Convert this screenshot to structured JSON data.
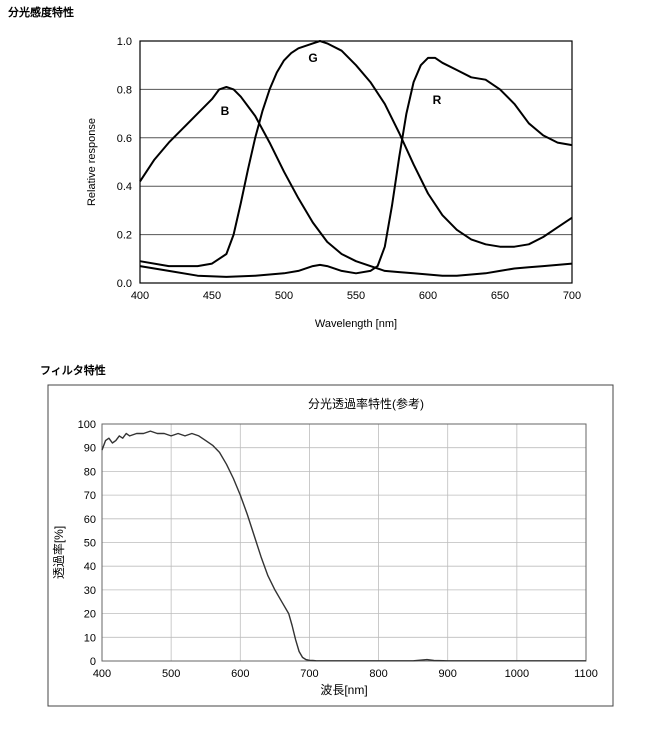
{
  "section1": {
    "title": "分光感度特性"
  },
  "section2": {
    "title": "フィルタ特性"
  },
  "chart_data": [
    {
      "type": "line",
      "title": "",
      "xlabel": "Wavelength [nm]",
      "ylabel": "Relative response",
      "xlim": [
        400,
        700
      ],
      "ylim": [
        0,
        1.0
      ],
      "xticks": [
        "400",
        "450",
        "500",
        "550",
        "600",
        "650",
        "700"
      ],
      "yticks": [
        "0.0",
        "0.2",
        "0.4",
        "0.6",
        "0.8",
        "1.0"
      ],
      "grid": "horizontal",
      "color": "#000000",
      "series": [
        {
          "name": "B",
          "x": [
            400,
            410,
            420,
            430,
            440,
            450,
            455,
            460,
            465,
            470,
            480,
            490,
            500,
            510,
            520,
            530,
            540,
            550,
            560,
            570,
            580,
            590,
            600,
            610,
            620,
            630,
            640,
            650,
            660,
            670,
            680,
            690,
            700
          ],
          "y": [
            0.42,
            0.51,
            0.58,
            0.64,
            0.7,
            0.76,
            0.8,
            0.81,
            0.8,
            0.77,
            0.69,
            0.58,
            0.46,
            0.35,
            0.25,
            0.17,
            0.12,
            0.09,
            0.07,
            0.05,
            0.045,
            0.04,
            0.035,
            0.03,
            0.03,
            0.035,
            0.04,
            0.05,
            0.06,
            0.065,
            0.07,
            0.075,
            0.08
          ]
        },
        {
          "name": "G",
          "x": [
            400,
            420,
            440,
            450,
            460,
            465,
            470,
            475,
            480,
            485,
            490,
            495,
            500,
            505,
            510,
            520,
            525,
            530,
            540,
            550,
            560,
            570,
            580,
            590,
            600,
            610,
            620,
            630,
            640,
            650,
            660,
            670,
            680,
            690,
            700
          ],
          "y": [
            0.09,
            0.07,
            0.07,
            0.08,
            0.12,
            0.2,
            0.33,
            0.47,
            0.6,
            0.71,
            0.8,
            0.87,
            0.92,
            0.95,
            0.97,
            0.99,
            1.0,
            0.99,
            0.96,
            0.9,
            0.83,
            0.74,
            0.62,
            0.49,
            0.37,
            0.28,
            0.22,
            0.18,
            0.16,
            0.15,
            0.15,
            0.16,
            0.19,
            0.23,
            0.27
          ]
        },
        {
          "name": "R",
          "x": [
            400,
            420,
            440,
            460,
            480,
            500,
            510,
            520,
            525,
            530,
            540,
            550,
            560,
            565,
            570,
            575,
            580,
            585,
            590,
            595,
            600,
            605,
            610,
            620,
            630,
            640,
            650,
            660,
            670,
            680,
            690,
            700
          ],
          "y": [
            0.07,
            0.05,
            0.03,
            0.025,
            0.03,
            0.04,
            0.05,
            0.07,
            0.075,
            0.07,
            0.05,
            0.04,
            0.05,
            0.07,
            0.15,
            0.32,
            0.52,
            0.7,
            0.83,
            0.9,
            0.93,
            0.93,
            0.91,
            0.88,
            0.85,
            0.84,
            0.8,
            0.74,
            0.66,
            0.61,
            0.58,
            0.57
          ]
        }
      ]
    },
    {
      "type": "line",
      "title": "分光透過率特性(参考)",
      "xlabel": "波長[nm]",
      "ylabel": "透過率[%]",
      "xlim": [
        400,
        1100
      ],
      "ylim": [
        0,
        100
      ],
      "xticks": [
        "400",
        "500",
        "600",
        "700",
        "800",
        "900",
        "1000",
        "1100"
      ],
      "yticks": [
        "0",
        "10",
        "20",
        "30",
        "40",
        "50",
        "60",
        "70",
        "80",
        "90",
        "100"
      ],
      "grid": "both",
      "color": "#333333",
      "series": [
        {
          "name": "",
          "x": [
            400,
            405,
            410,
            415,
            420,
            425,
            430,
            435,
            440,
            450,
            460,
            470,
            480,
            490,
            500,
            510,
            520,
            530,
            540,
            550,
            560,
            570,
            580,
            590,
            600,
            610,
            620,
            630,
            640,
            650,
            660,
            670,
            675,
            680,
            685,
            690,
            695,
            700,
            705,
            710,
            720,
            750,
            800,
            850,
            870,
            880,
            900,
            1000,
            1100
          ],
          "y": [
            89,
            93,
            94,
            92,
            93,
            95,
            94,
            96,
            95,
            96,
            96,
            97,
            96,
            96,
            95,
            96,
            95,
            96,
            95,
            93,
            91,
            88,
            83,
            77,
            70,
            62,
            53,
            44,
            36,
            30,
            25,
            20,
            15,
            9,
            4,
            1.5,
            0.6,
            0.3,
            0.2,
            0.1,
            0.1,
            0.1,
            0.1,
            0.1,
            0.6,
            0.2,
            0.1,
            0.1,
            0.1
          ]
        }
      ]
    }
  ]
}
